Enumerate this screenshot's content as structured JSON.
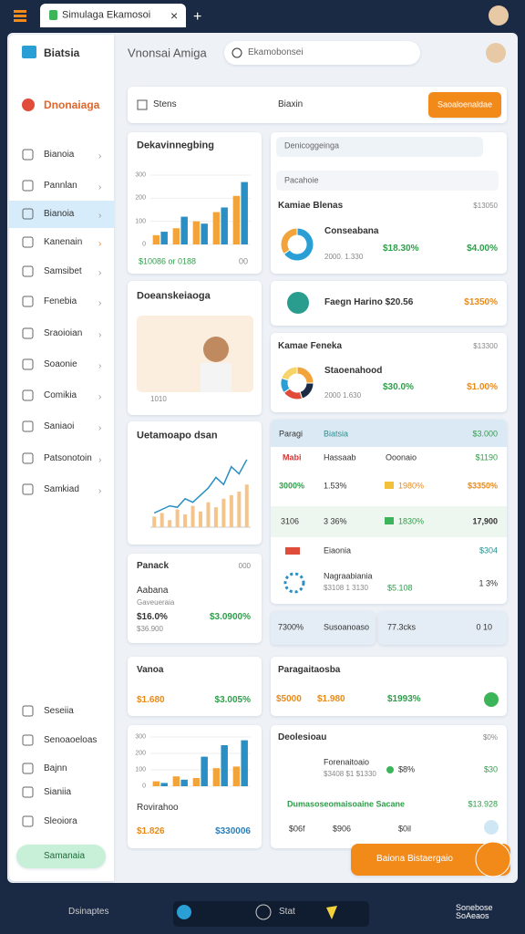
{
  "browser": {
    "tab": "Simulaga Ekamosoi"
  },
  "sidebar": {
    "title": "Biatsia",
    "brand": "Dnonaiaga",
    "nav": [
      "Bianoia",
      "Pannlan",
      "Bianoia",
      "Kanenain",
      "Samsibet",
      "Fenebia",
      "Sraoioian",
      "Soaonie",
      "Comikia",
      "Saniaoi",
      "Patsonotoin",
      "Samkiad"
    ],
    "bottom": [
      "Seseiia",
      "Senoaoeloas",
      "Bajnn",
      "Sianiia",
      "Sleoiora"
    ],
    "button": "Samanaia"
  },
  "header": {
    "title": "Vnonsai Amiga",
    "search": "Ekamobonsei"
  },
  "filters": {
    "check": "Stens",
    "select": "Biaxin",
    "button": "Saoaloenaldae"
  },
  "cards": {
    "sales": {
      "title": "Dekavinnegbing",
      "footer_left": "$10086 or 0188",
      "footer_right": "00"
    },
    "profile": {
      "title": "Doeanskeiaoga",
      "caption": "1010"
    },
    "trend": {
      "title": "Uetamoapo dsan"
    },
    "panack": {
      "title": "Panack",
      "corner": "000",
      "sub1": "Aabana",
      "sub2": "Gaveueraia",
      "value1": "$16.0%",
      "value2": "$36.900",
      "value3": "$3.0900%"
    },
    "vanoa": {
      "title": "Vanoa",
      "value1": "$1.680",
      "value2": "$3.005%"
    },
    "revenue": {
      "label": "Rovirahoo",
      "value1": "$1.826",
      "value2": "$330006"
    },
    "overview": {
      "select1": "Denicoggeinga",
      "select2": "Pacahoie",
      "title": "Kamiae Blenas",
      "corner": "$13050",
      "name": "Conseabana",
      "sub": "2000. 1.330",
      "value1": "$18.30%",
      "value2": "$4.00%"
    },
    "single": {
      "text": "Faegn Harino $20.56",
      "value": "$1350%"
    },
    "feneka": {
      "title": "Kamae Feneka",
      "corner": "$13300",
      "name": "Staoenahood",
      "sub": "2000 1.630",
      "value1": "$30.0%",
      "value2": "$1.00%"
    },
    "table": {
      "header": [
        "Paragi",
        "Biatsia",
        "$3.000"
      ],
      "row1": [
        "Mabi",
        "Hassaab",
        "Ooonaio",
        "$1190"
      ],
      "row2": [
        "3000%",
        "1.53%",
        "1980%",
        "$3350%"
      ],
      "row3": [
        "3106",
        "3 36%",
        "1830%",
        "17,900"
      ],
      "row4": [
        "Eiaonia",
        "$304"
      ],
      "row5": [
        "Nagraabiania",
        "$3108 1 3130",
        "$5.108",
        "1 3%"
      ]
    },
    "summary": [
      "7300%",
      "Susoanoaso",
      "77.3cks",
      "0 10"
    ],
    "paragait": {
      "title": "Paragaitaosba",
      "values": [
        "$5000",
        "$1.980",
        "$1993%"
      ]
    },
    "list": {
      "title": "Deolesioau",
      "corner": "$0%",
      "item1": [
        "Forenaitoaio",
        "$3408 $1 $1330",
        "$8%",
        "$30"
      ],
      "item2": [
        "Dumasoseomaisoaine Sacane",
        "$13.928"
      ],
      "item3": [
        "$06f",
        "$906",
        "$0il"
      ]
    },
    "fab": "Baiona Bistaergaio",
    "taskbar": {
      "search": "Dsinaptes",
      "item": "Stat",
      "clock": "Sonebose SoAeaos"
    }
  },
  "chart_data": [
    {
      "type": "bar",
      "categories": [
        null,
        null,
        null,
        null,
        null
      ],
      "series": [
        {
          "color": "#f2a33a",
          "values": [
            40,
            70,
            100,
            140,
            210
          ]
        },
        {
          "color": "#2a8fc4",
          "values": [
            55,
            120,
            90,
            160,
            270
          ]
        }
      ],
      "ylim": [
        0,
        300
      ],
      "yticks": [
        0,
        100,
        200,
        300
      ]
    },
    {
      "type": "line",
      "categories": [
        null,
        null,
        null,
        null,
        null,
        null,
        null,
        null,
        null,
        null,
        null,
        null,
        null
      ],
      "series": [
        {
          "color": "#2a8fc4",
          "values": [
            20,
            25,
            30,
            28,
            40,
            35,
            45,
            55,
            70,
            60,
            85,
            75,
            95
          ]
        },
        {
          "color": "#f5c48a",
          "values": [
            15,
            20,
            10,
            25,
            18,
            30,
            22,
            35,
            28,
            40,
            45,
            50,
            60
          ]
        }
      ],
      "ylim": [
        0,
        100
      ]
    },
    {
      "type": "bar",
      "categories": [
        null,
        null,
        null,
        null,
        null
      ],
      "series": [
        {
          "color": "#f2a33a",
          "values": [
            30,
            60,
            50,
            110,
            120
          ]
        },
        {
          "color": "#2a8fc4",
          "values": [
            20,
            40,
            180,
            250,
            280
          ]
        }
      ],
      "ylim": [
        0,
        300
      ],
      "yticks": [
        0,
        100,
        200,
        300
      ]
    },
    {
      "type": "pie",
      "values": [
        65,
        35
      ],
      "colors": [
        "#2a9fd6",
        "#f2a33a"
      ]
    },
    {
      "type": "pie",
      "values": [
        25,
        20,
        20,
        15,
        20
      ],
      "colors": [
        "#f2a33a",
        "#1b2a44",
        "#e04b3a",
        "#2a9fd6",
        "#f7d36b"
      ]
    }
  ]
}
